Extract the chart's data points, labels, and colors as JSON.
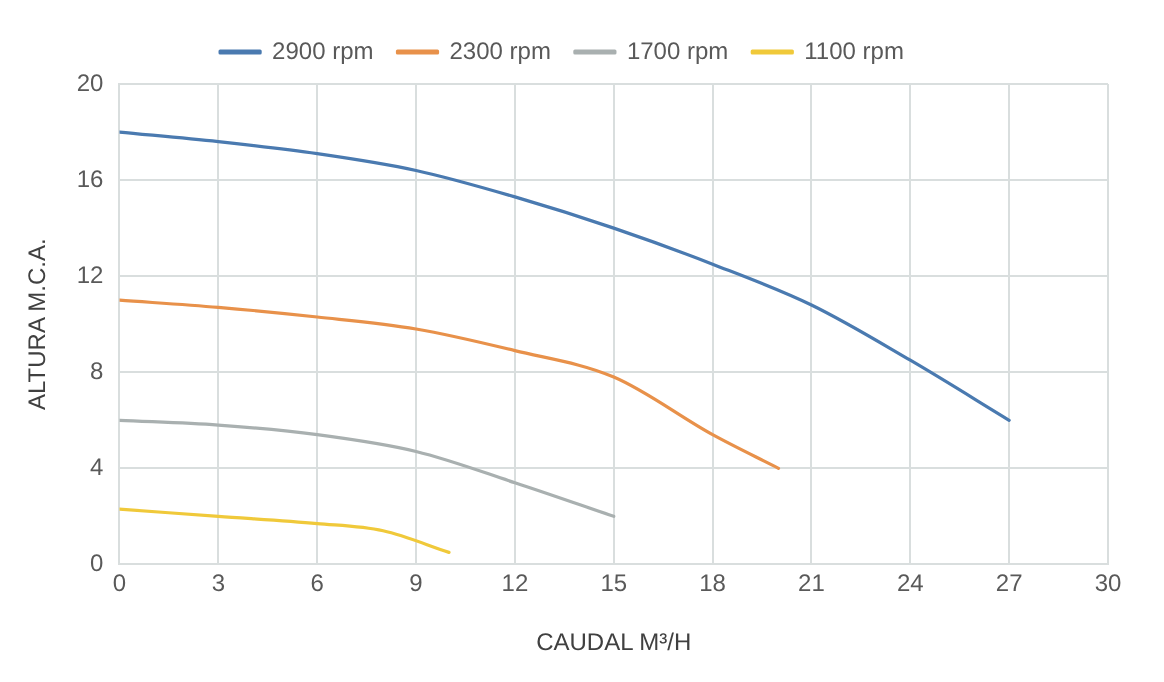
{
  "chart_data": {
    "type": "line",
    "xlabel": "CAUDAL M³/H",
    "ylabel": "ALTURA M.C.A.",
    "xlim": [
      0,
      30
    ],
    "xticks": [
      0,
      3,
      6,
      9,
      12,
      15,
      18,
      21,
      24,
      27,
      30
    ],
    "ylim": [
      0,
      20
    ],
    "yticks": [
      0,
      4,
      8,
      12,
      16,
      20
    ],
    "grid": true,
    "legend": "top",
    "marker": "none",
    "line_style": "solid",
    "series": [
      {
        "name": "2900 rpm",
        "color": "#4a7ab0",
        "x": [
          0,
          3,
          6,
          9,
          12,
          15,
          18,
          21,
          24,
          27
        ],
        "values": [
          18,
          17.6,
          17.1,
          16.4,
          15.3,
          14,
          12.5,
          10.8,
          8.5,
          6
        ]
      },
      {
        "name": "2300 rpm",
        "color": "#e8914a",
        "x": [
          0,
          3,
          6,
          9,
          12,
          15,
          18,
          20
        ],
        "values": [
          11,
          10.7,
          10.3,
          9.8,
          8.9,
          7.8,
          5.4,
          4
        ]
      },
      {
        "name": "1700 rpm",
        "color": "#a9b0b0",
        "x": [
          0,
          3,
          6,
          9,
          12,
          15
        ],
        "values": [
          6,
          5.8,
          5.4,
          4.7,
          3.4,
          2
        ]
      },
      {
        "name": "1100 rpm",
        "color": "#f0c93a",
        "x": [
          0,
          3,
          6,
          8,
          10
        ],
        "values": [
          2.3,
          2,
          1.7,
          1.4,
          0.5
        ]
      }
    ]
  }
}
